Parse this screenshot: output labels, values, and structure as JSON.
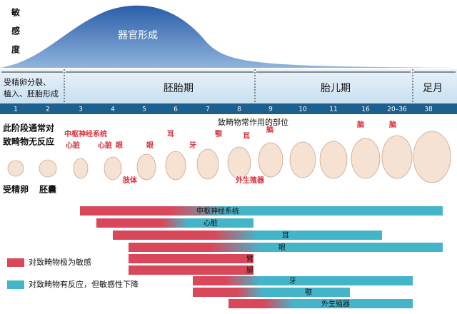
{
  "sensitivity_label": [
    "敏",
    "感",
    "度"
  ],
  "organogenesis": "器官形成",
  "periods": [
    "受精卵分裂、\n植入、胚胎形成",
    "胚胎期",
    "胎儿期",
    "足月"
  ],
  "weeks": [
    "1",
    "2",
    "3",
    "4",
    "5",
    "6",
    "7",
    "8",
    "9",
    "10",
    "11",
    "16",
    "20–36",
    "38"
  ],
  "note": [
    "此阶段通常对",
    "致畸物无反应"
  ],
  "sites_title": "致畸物常作用的部位",
  "stages": [
    "受精卵",
    "胚囊"
  ],
  "site_labels": [
    "中枢神经系统",
    "心脏",
    "心脏",
    "眼",
    "眼",
    "耳",
    "牙",
    "颚",
    "耳",
    "脑",
    "脑",
    "脑",
    "肢体",
    "外生殖器"
  ],
  "bars": [
    "中枢神经系统",
    "心脏",
    "耳",
    "眼",
    "臂",
    "腿",
    "牙",
    "颚",
    "外生殖器"
  ],
  "legend": [
    "对致畸物极为敏感",
    "对致畸物有反应，但敏感性下降"
  ]
}
